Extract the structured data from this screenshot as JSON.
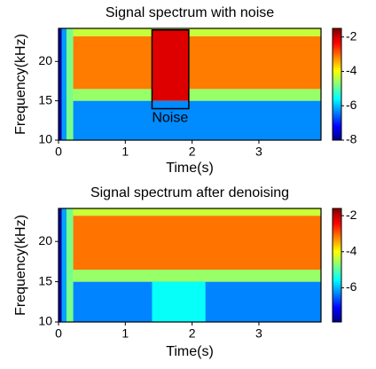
{
  "chart_data": [
    {
      "type": "heatmap",
      "title": "Signal spectrum with noise",
      "xlabel": "Time(s)",
      "ylabel": "Frequency(kHz)",
      "xlim": [
        0,
        3.93
      ],
      "ylim": [
        10,
        24.2
      ],
      "xticks": [
        0,
        1,
        2,
        3
      ],
      "yticks": [
        10,
        15,
        20
      ],
      "clim": [
        -8,
        -1.5
      ],
      "cticks": [
        -2,
        -4,
        -6,
        -8
      ],
      "colormap": "jet",
      "regions": [
        {
          "t": [
            0,
            0.05
          ],
          "f": [
            10,
            24.2
          ],
          "value": -7.8
        },
        {
          "t": [
            0.05,
            0.12
          ],
          "f": [
            10,
            24.2
          ],
          "value": -6.2
        },
        {
          "t": [
            0.12,
            0.22
          ],
          "f": [
            10,
            24.2
          ],
          "value": -4.8
        },
        {
          "t": [
            0.22,
            3.93
          ],
          "f": [
            10,
            15
          ],
          "value": -6.3
        },
        {
          "t": [
            0.22,
            3.93
          ],
          "f": [
            15,
            16.5
          ],
          "value": -4.6
        },
        {
          "t": [
            0.22,
            3.93
          ],
          "f": [
            16.5,
            23.2
          ],
          "value": -3.1
        },
        {
          "t": [
            0.22,
            3.93
          ],
          "f": [
            23.2,
            24.2
          ],
          "value": -4.3
        },
        {
          "t": [
            1.4,
            1.95
          ],
          "f": [
            15,
            24
          ],
          "value": -2.1
        }
      ],
      "annotation": {
        "text": "Noise",
        "t": [
          1.4,
          1.95
        ],
        "f": [
          14,
          24
        ],
        "label_t": 1.67,
        "label_f": 12.8
      }
    },
    {
      "type": "heatmap",
      "title": "Signal spectrum after denoising",
      "xlabel": "Time(s)",
      "ylabel": "Frequency(kHz)",
      "xlim": [
        0,
        3.93
      ],
      "ylim": [
        10,
        24.1
      ],
      "xticks": [
        0,
        1,
        2,
        3
      ],
      "yticks": [
        10,
        15,
        20
      ],
      "clim": [
        -7.9,
        -1.6
      ],
      "cticks": [
        -2,
        -4,
        -6
      ],
      "colormap": "jet",
      "regions": [
        {
          "t": [
            0,
            0.05
          ],
          "f": [
            10,
            24.1
          ],
          "value": -7.7
        },
        {
          "t": [
            0.05,
            0.12
          ],
          "f": [
            10,
            24.1
          ],
          "value": -6.1
        },
        {
          "t": [
            0.12,
            0.22
          ],
          "f": [
            10,
            24.1
          ],
          "value": -4.8
        },
        {
          "t": [
            0.22,
            3.93
          ],
          "f": [
            10,
            15
          ],
          "value": -6.3
        },
        {
          "t": [
            0.22,
            3.93
          ],
          "f": [
            15,
            16.5
          ],
          "value": -4.6
        },
        {
          "t": [
            0.22,
            3.93
          ],
          "f": [
            16.5,
            23.2
          ],
          "value": -3.1
        },
        {
          "t": [
            0.22,
            3.93
          ],
          "f": [
            23.2,
            24.1
          ],
          "value": -4.3
        },
        {
          "t": [
            1.4,
            2.2
          ],
          "f": [
            10,
            15
          ],
          "value": -5.5
        }
      ]
    }
  ]
}
